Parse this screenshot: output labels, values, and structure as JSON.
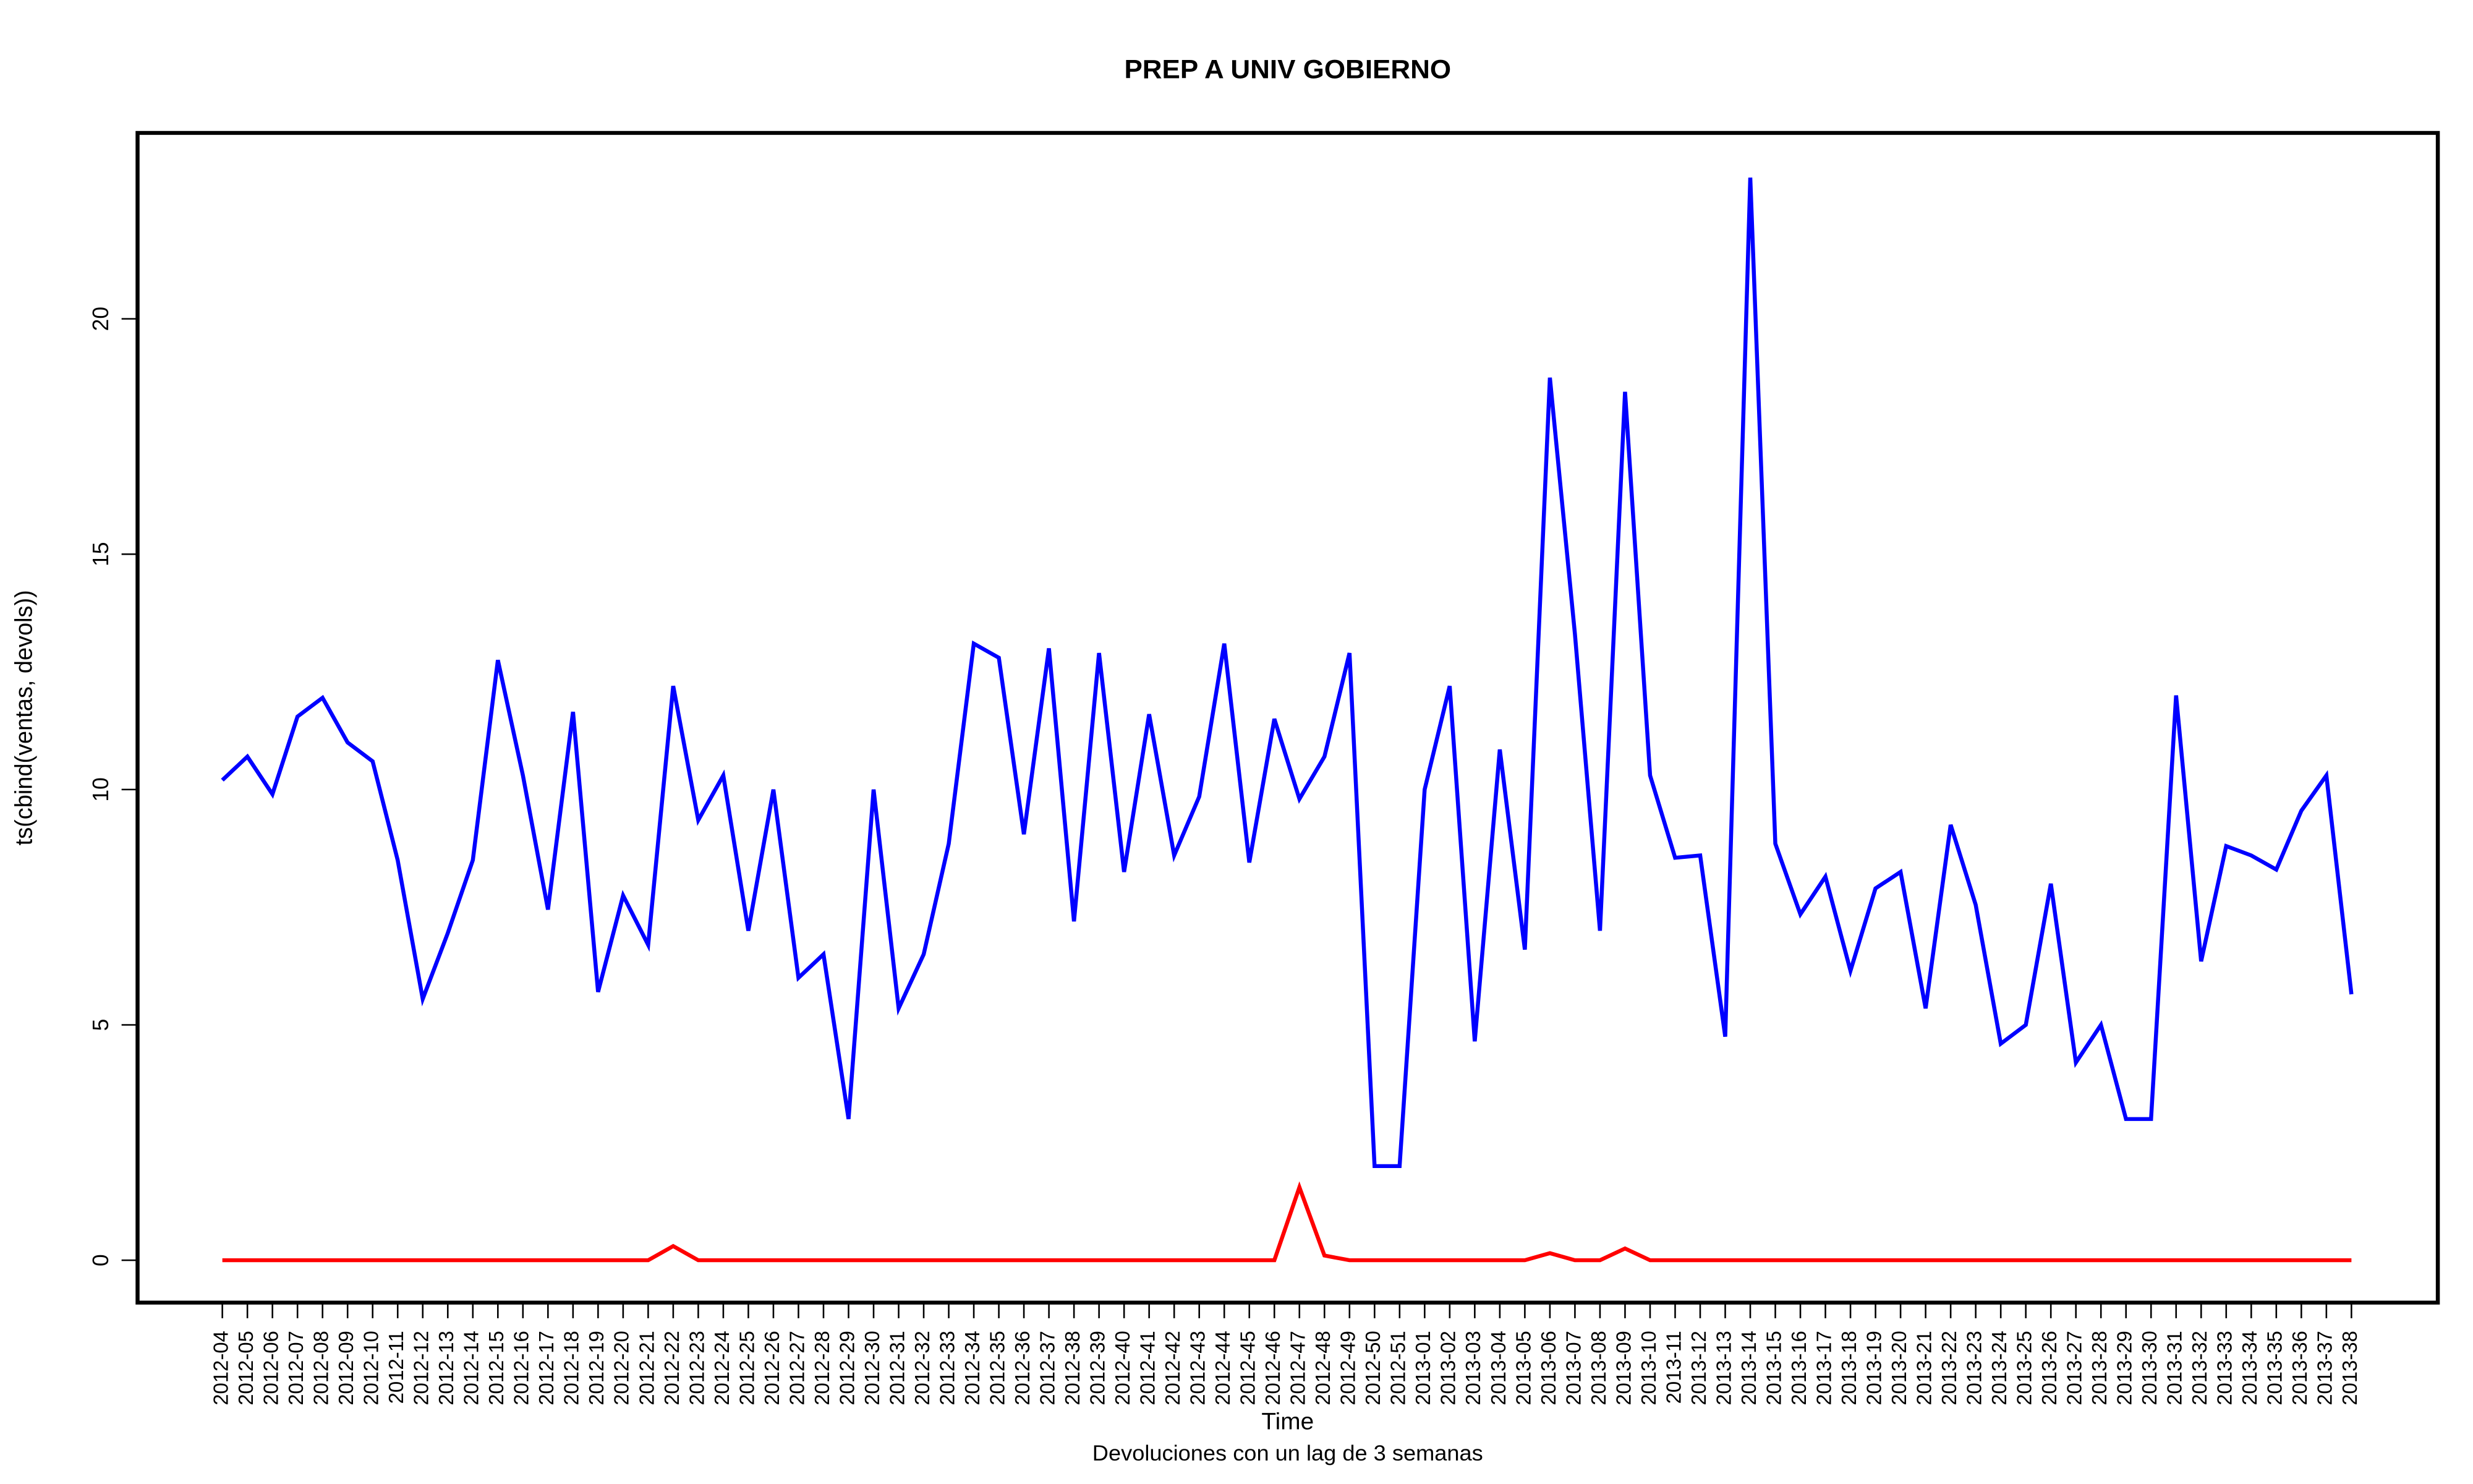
{
  "chart_data": {
    "type": "line",
    "title": "PREP A UNIV GOBIERNO",
    "y_label": "ts(cbind(ventas, devols))",
    "x_label": "Time",
    "subtitle": "Devoluciones con un lag de 3 semanas",
    "categories": [
      "2012-04",
      "2012-05",
      "2012-06",
      "2012-07",
      "2012-08",
      "2012-09",
      "2012-10",
      "2012-11",
      "2012-12",
      "2012-13",
      "2012-14",
      "2012-15",
      "2012-16",
      "2012-17",
      "2012-18",
      "2012-19",
      "2012-20",
      "2012-21",
      "2012-22",
      "2012-23",
      "2012-24",
      "2012-25",
      "2012-26",
      "2012-27",
      "2012-28",
      "2012-29",
      "2012-30",
      "2012-31",
      "2012-32",
      "2012-33",
      "2012-34",
      "2012-35",
      "2012-36",
      "2012-37",
      "2012-38",
      "2012-39",
      "2012-40",
      "2012-41",
      "2012-42",
      "2012-43",
      "2012-44",
      "2012-45",
      "2012-46",
      "2012-47",
      "2012-48",
      "2012-49",
      "2012-50",
      "2012-51",
      "2013-01",
      "2013-02",
      "2013-03",
      "2013-04",
      "2013-05",
      "2013-06",
      "2013-07",
      "2013-08",
      "2013-09",
      "2013-10",
      "2013-11",
      "2013-12",
      "2013-13",
      "2013-14",
      "2013-15",
      "2013-16",
      "2013-17",
      "2013-18",
      "2013-19",
      "2013-20",
      "2013-21",
      "2013-22",
      "2013-23",
      "2013-24",
      "2013-25",
      "2013-26",
      "2013-27",
      "2013-28",
      "2013-29",
      "2013-30",
      "2013-31",
      "2013-32",
      "2013-33",
      "2013-34",
      "2013-35",
      "2013-36",
      "2013-37",
      "2013-38"
    ],
    "series": [
      {
        "color": "#0000ff",
        "values": [
          10.2,
          10.7,
          9.9,
          11.55,
          11.95,
          11.0,
          10.6,
          8.5,
          5.55,
          6.95,
          8.5,
          12.75,
          10.3,
          7.45,
          11.65,
          5.7,
          7.75,
          6.7,
          12.2,
          9.35,
          10.3,
          7.0,
          10.0,
          6.0,
          6.5,
          3.0,
          10.0,
          5.35,
          6.5,
          8.85,
          13.1,
          12.8,
          9.05,
          13.0,
          7.2,
          12.9,
          8.25,
          11.6,
          8.6,
          9.85,
          13.1,
          8.45,
          11.5,
          9.8,
          10.7,
          12.9,
          2.0,
          2.0,
          10.0,
          12.2,
          4.65,
          10.85,
          6.6,
          18.75,
          13.3,
          7.0,
          18.45,
          10.3,
          8.55,
          8.6,
          4.75,
          23.0,
          8.85,
          7.35,
          8.15,
          6.15,
          7.9,
          8.25,
          5.35,
          9.25,
          7.55,
          4.6,
          5.0,
          8.0,
          4.2,
          5.0,
          3.0,
          3.0,
          12.0,
          6.35,
          8.8,
          8.6,
          8.3,
          9.55,
          10.3,
          5.65
        ]
      },
      {
        "color": "#ff0000",
        "values": [
          0,
          0,
          0,
          0,
          0,
          0,
          0,
          0,
          0,
          0,
          0,
          0,
          0,
          0,
          0,
          0,
          0,
          0,
          0.3,
          0,
          0,
          0,
          0,
          0,
          0,
          0,
          0,
          0,
          0,
          0,
          0,
          0,
          0,
          0,
          0,
          0,
          0,
          0,
          0,
          0,
          0,
          0,
          0,
          1.55,
          0.1,
          0,
          0,
          0,
          0,
          0,
          0,
          0,
          0,
          0.15,
          0,
          0,
          0.25,
          0,
          0,
          0,
          0,
          0,
          0,
          0,
          0,
          0,
          0,
          0,
          0,
          0,
          0,
          0,
          0,
          0,
          0,
          0,
          0,
          0,
          0,
          0,
          0,
          0,
          0,
          0,
          0,
          0
        ]
      }
    ],
    "ylim": [
      -0.9,
      23.95
    ],
    "yticks": [
      0,
      5,
      10,
      15,
      20
    ]
  }
}
